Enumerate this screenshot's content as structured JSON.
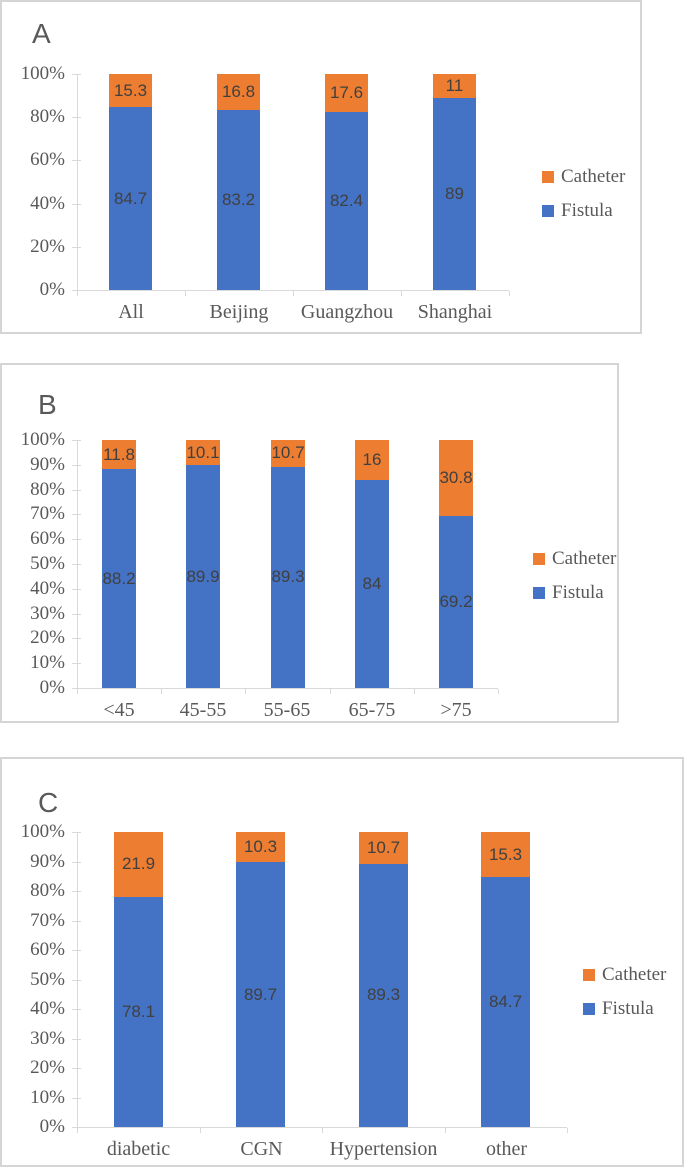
{
  "colors": {
    "fistula_blue": "#4472C4",
    "catheter_orange": "#ED7D31",
    "axis_gray": "#D9D9D9",
    "text_gray": "#595959",
    "data_label_gray": "#404040"
  },
  "legend": {
    "items": [
      {
        "label": "Catheter",
        "color": "#ED7D31"
      },
      {
        "label": "Fistula",
        "color": "#4472C4"
      }
    ]
  },
  "chart_data": [
    {
      "type": "bar",
      "subtype": "stacked-100-percent-column",
      "panel_label": "A",
      "categories": [
        "All",
        "Beijing",
        "Guangzhou",
        "Shanghai"
      ],
      "series": [
        {
          "name": "Fistula",
          "color": "#4472C4",
          "values": [
            84.7,
            83.2,
            82.4,
            89
          ],
          "labels": [
            "84.7",
            "83.2",
            "82.4",
            "89"
          ]
        },
        {
          "name": "Catheter",
          "color": "#ED7D31",
          "values": [
            15.3,
            16.8,
            17.6,
            11
          ],
          "labels": [
            "15.3",
            "16.8",
            "17.6",
            "11"
          ]
        }
      ],
      "y_ticks": [
        "0%",
        "20%",
        "40%",
        "60%",
        "80%",
        "100%"
      ],
      "ylim": [
        0,
        100
      ],
      "grid": false,
      "legend_position": "right"
    },
    {
      "type": "bar",
      "subtype": "stacked-100-percent-column",
      "panel_label": "B",
      "categories": [
        "<45",
        "45-55",
        "55-65",
        "65-75",
        ">75"
      ],
      "series": [
        {
          "name": "Fistula",
          "color": "#4472C4",
          "values": [
            88.2,
            89.9,
            89.3,
            84,
            69.2
          ],
          "labels": [
            "88.2",
            "89.9",
            "89.3",
            "84",
            "69.2"
          ]
        },
        {
          "name": "Catheter",
          "color": "#ED7D31",
          "values": [
            11.8,
            10.1,
            10.7,
            16,
            30.8
          ],
          "labels": [
            "11.8",
            "10.1",
            "10.7",
            "16",
            "30.8"
          ]
        }
      ],
      "y_ticks": [
        "0%",
        "10%",
        "20%",
        "30%",
        "40%",
        "50%",
        "60%",
        "70%",
        "80%",
        "90%",
        "100%"
      ],
      "ylim": [
        0,
        100
      ],
      "grid": false,
      "legend_position": "right"
    },
    {
      "type": "bar",
      "subtype": "stacked-100-percent-column",
      "panel_label": "C",
      "categories": [
        "diabetic",
        "CGN",
        "Hypertension",
        "other"
      ],
      "series": [
        {
          "name": "Fistula",
          "color": "#4472C4",
          "values": [
            78.1,
            89.7,
            89.3,
            84.7
          ],
          "labels": [
            "78.1",
            "89.7",
            "89.3",
            "84.7"
          ]
        },
        {
          "name": "Catheter",
          "color": "#ED7D31",
          "values": [
            21.9,
            10.3,
            10.7,
            15.3
          ],
          "labels": [
            "21.9",
            "10.3",
            "10.7",
            "15.3"
          ]
        }
      ],
      "y_ticks": [
        "0%",
        "10%",
        "20%",
        "30%",
        "40%",
        "50%",
        "60%",
        "70%",
        "80%",
        "90%",
        "100%"
      ],
      "ylim": [
        0,
        100
      ],
      "grid": false,
      "legend_position": "right"
    }
  ]
}
